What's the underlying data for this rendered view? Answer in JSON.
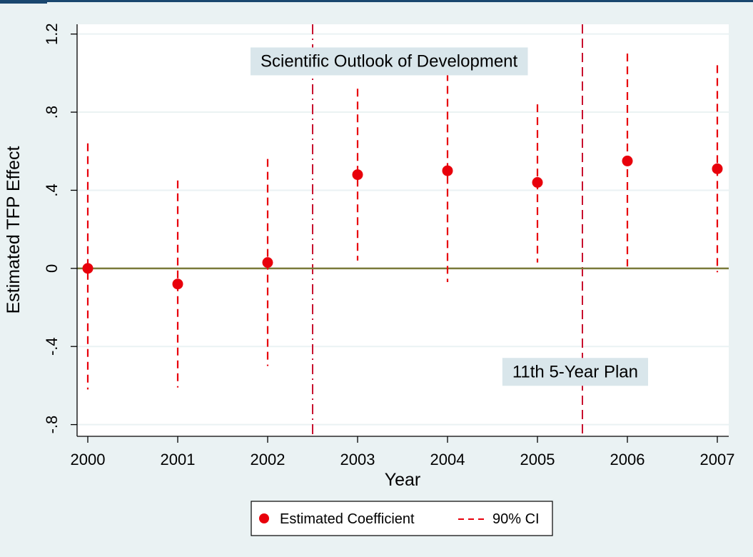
{
  "chart_data": {
    "type": "scatter",
    "title": "",
    "xlabel": "Year",
    "ylabel": "Estimated TFP Effect",
    "x": [
      2000,
      2001,
      2002,
      2003,
      2004,
      2005,
      2006,
      2007
    ],
    "x_tick_labels": [
      "2000",
      "2001",
      "2002",
      "2003",
      "2004",
      "2005",
      "2006",
      "2007"
    ],
    "y_ticks": [
      -0.8,
      -0.4,
      0,
      0.4,
      0.8,
      1.2
    ],
    "y_tick_labels": [
      "-.8",
      "-.4",
      "0",
      ".4",
      ".8",
      "1.2"
    ],
    "xlim": [
      2000,
      2007
    ],
    "ylim": [
      -0.86,
      1.25
    ],
    "grid": true,
    "series": [
      {
        "name": "Estimated Coefficient",
        "values": [
          0.0,
          -0.08,
          0.03,
          0.48,
          0.5,
          0.44,
          0.55,
          0.51
        ],
        "color": "#e8000b"
      },
      {
        "name": "90% CI",
        "lower": [
          -0.62,
          -0.61,
          -0.5,
          0.04,
          -0.07,
          0.03,
          0.01,
          -0.02
        ],
        "upper": [
          0.64,
          0.45,
          0.56,
          0.92,
          1.0,
          0.84,
          1.1,
          1.04
        ],
        "color": "#e8000b"
      }
    ],
    "zero_line_color": "#7a7a3a",
    "reference_lines": [
      {
        "x": 2002.5,
        "color": "#c8102e",
        "style": "dash-dot"
      },
      {
        "x": 2005.5,
        "color": "#c8102e",
        "style": "dashed"
      }
    ],
    "annotations": [
      {
        "text": "Scientific Outlook of Development",
        "x": 2003.35,
        "y": 1.06
      },
      {
        "text": "11th 5-Year Plan",
        "x": 2005.42,
        "y": -0.53
      }
    ],
    "legend": {
      "position": "bottom-center",
      "items": [
        "Estimated Coefficient",
        "90% CI"
      ]
    }
  }
}
